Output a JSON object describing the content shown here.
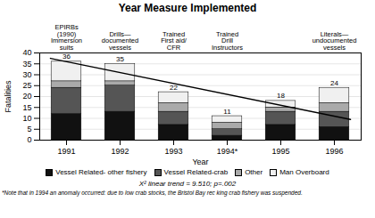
{
  "chart_data": {
    "type": "bar",
    "stacked": true,
    "title": "Year Measure Implemented",
    "xlabel": "Year",
    "ylabel": "Fatalities",
    "categories": [
      "1991",
      "1992",
      "1993",
      "1994*",
      "1995",
      "1996"
    ],
    "series": [
      {
        "name": "Vessel Related- other fishery",
        "color": "#111111",
        "values": [
          12,
          13,
          7,
          2,
          7,
          6
        ]
      },
      {
        "name": "Vessel Related-crab",
        "color": "#555555",
        "values": [
          12,
          12,
          6,
          3,
          6,
          7
        ]
      },
      {
        "name": "Other",
        "color": "#aaaaaa",
        "values": [
          3,
          2,
          4,
          3,
          2,
          4
        ]
      },
      {
        "name": "Man Overboard",
        "color": "#f0f0f0",
        "values": [
          9,
          8,
          5,
          3,
          3,
          7
        ]
      }
    ],
    "totals": [
      36,
      35,
      22,
      11,
      18,
      24
    ],
    "trend_line": {
      "x": [
        -0.3,
        5.3
      ],
      "y": [
        37.5,
        9.5
      ]
    },
    "annotations": [
      {
        "text": "EPIRBs\n(1990)\nImmersion\nsuits",
        "x": 0
      },
      {
        "text": "Drills—\ndocumented\nvessels",
        "x": 1
      },
      {
        "text": "Trained\nFirst aid/\nCFR",
        "x": 2
      },
      {
        "text": "Trained\nDrill\nInstructors",
        "x": 3
      },
      {
        "text": "Literals—\nundocumented\nvessels",
        "x": 5
      }
    ],
    "footnotes": [
      "X² linear trend = 9.510; p=.002",
      "*Note that in 1994 an anomaly occurred: due to low crab stocks, the Bristol Bay rec king crab fishery was suspended."
    ],
    "ylim": [
      0,
      40
    ],
    "yticks": [
      0,
      5,
      10,
      15,
      20,
      25,
      30,
      35,
      40
    ],
    "grid": true,
    "legend": "bottom"
  }
}
